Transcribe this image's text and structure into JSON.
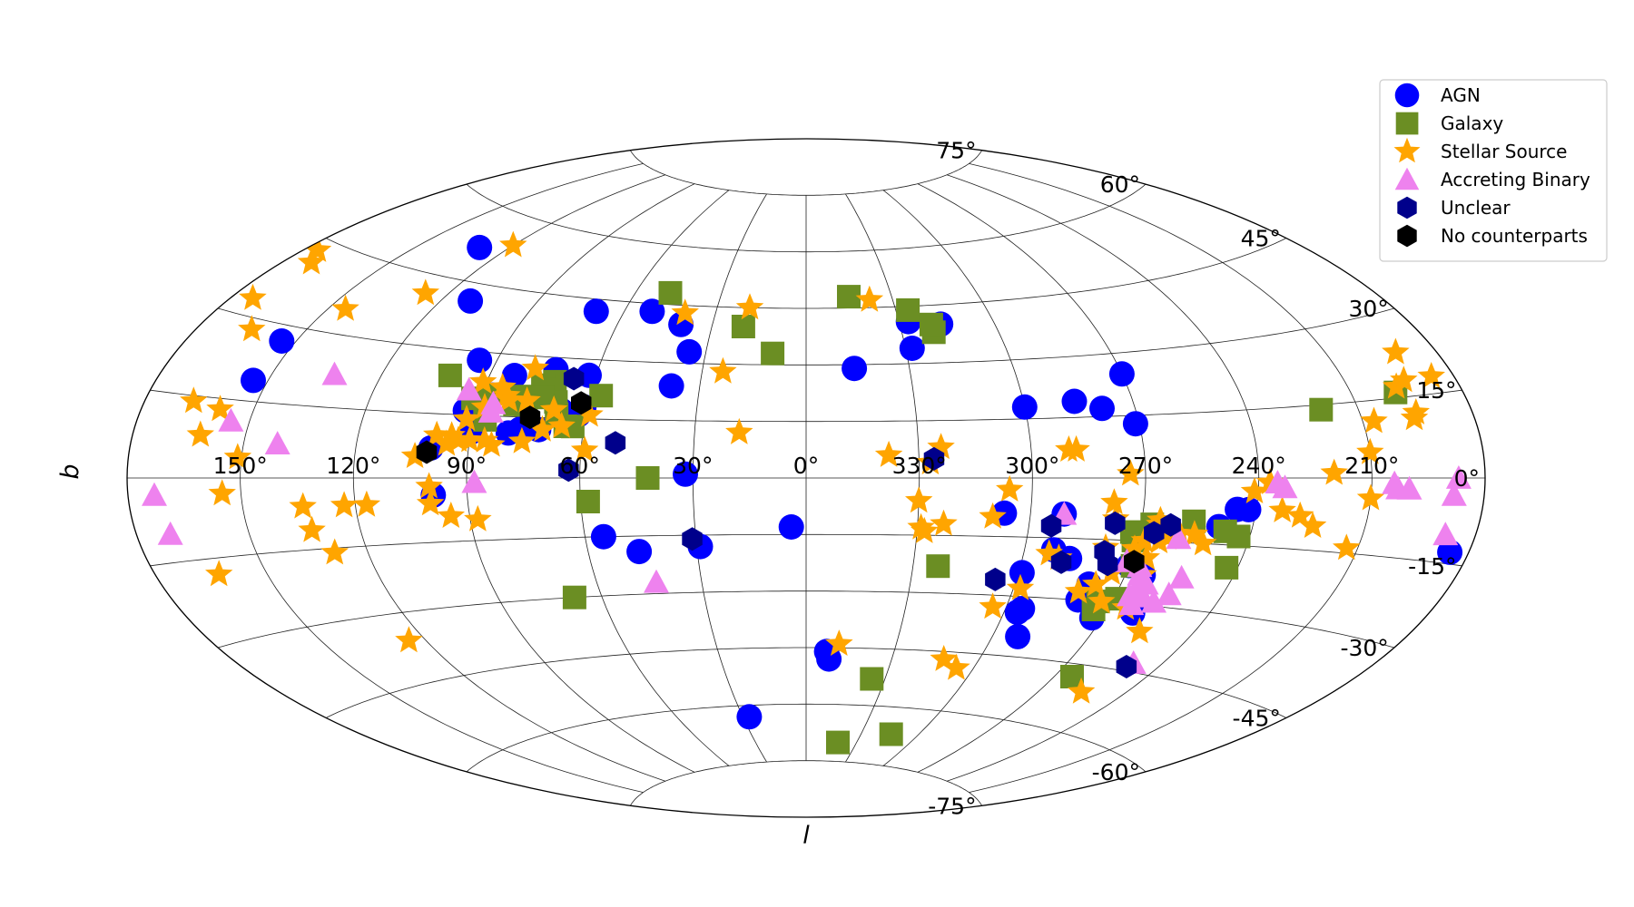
{
  "chart_data": {
    "type": "scatter",
    "projection": "aitoff",
    "grid": true,
    "legend_position": "top-right",
    "xlabel": "l",
    "ylabel": "b",
    "x_ticks": [
      {
        "l": 150,
        "label": "150°"
      },
      {
        "l": 120,
        "label": "120°"
      },
      {
        "l": 90,
        "label": "90°"
      },
      {
        "l": 60,
        "label": "60°"
      },
      {
        "l": 30,
        "label": "30°"
      },
      {
        "l": 0,
        "label": "0°"
      },
      {
        "l": 330,
        "label": "330°"
      },
      {
        "l": 300,
        "label": "300°"
      },
      {
        "l": 270,
        "label": "270°"
      },
      {
        "l": 240,
        "label": "240°"
      },
      {
        "l": 210,
        "label": "210°"
      }
    ],
    "y_ticks": [
      {
        "b": 75,
        "label": "75°"
      },
      {
        "b": 60,
        "label": "60°"
      },
      {
        "b": 45,
        "label": "45°"
      },
      {
        "b": 30,
        "label": "30°"
      },
      {
        "b": 15,
        "label": "15°"
      },
      {
        "b": 0,
        "label": "0°"
      },
      {
        "b": -15,
        "label": "-15°"
      },
      {
        "b": -30,
        "label": "-30°"
      },
      {
        "b": -45,
        "label": "-45°"
      },
      {
        "b": -60,
        "label": "-60°"
      },
      {
        "b": -75,
        "label": "-75°"
      }
    ],
    "series": [
      {
        "name": "AGN",
        "marker": "circle",
        "color": "#0000ff",
        "points": [
          [
            130,
            52
          ],
          [
            111,
            41
          ],
          [
            69,
            42
          ],
          [
            40,
            40
          ],
          [
            51,
            43
          ],
          [
            35,
            33
          ],
          [
            154,
            27
          ],
          [
            154,
            19
          ],
          [
            95,
            28
          ],
          [
            83,
            25
          ],
          [
            87,
            20
          ],
          [
            72,
            27
          ],
          [
            62,
            26
          ],
          [
            61,
            18
          ],
          [
            62,
            16
          ],
          [
            67,
            17
          ],
          [
            93,
            16
          ],
          [
            90,
            11
          ],
          [
            72,
            12
          ],
          [
            80,
            11
          ],
          [
            77,
            12
          ],
          [
            92,
            18
          ],
          [
            38,
            24
          ],
          [
            100,
            7
          ],
          [
            99,
            -4
          ],
          [
            32,
            1
          ],
          [
            55,
            -15
          ],
          [
            46,
            -19
          ],
          [
            29,
            -18
          ],
          [
            4,
            -13
          ],
          [
            352,
            -48
          ],
          [
            353,
            -46
          ],
          [
            27,
            -63
          ],
          [
            346,
            29
          ],
          [
            328,
            34
          ],
          [
            317,
            40
          ],
          [
            327,
            41
          ],
          [
            300,
            18
          ],
          [
            286,
            19
          ],
          [
            279,
            17
          ],
          [
            270,
            25
          ],
          [
            271,
            13
          ],
          [
            245,
            -7
          ],
          [
            249,
            -11
          ],
          [
            242,
            -7
          ],
          [
            185,
            -13
          ],
          [
            307,
            -9
          ],
          [
            291,
            -9
          ],
          [
            292,
            -18
          ],
          [
            299,
            -24
          ],
          [
            287,
            -20
          ],
          [
            292,
            -40
          ],
          [
            295,
            -33
          ],
          [
            296,
            -34
          ],
          [
            280,
            -30
          ],
          [
            279,
            -26
          ],
          [
            277,
            -29
          ],
          [
            273,
            -34
          ],
          [
            262,
            -32
          ],
          [
            265,
            -23
          ],
          [
            270,
            -21
          ]
        ]
      },
      {
        "name": "Galaxy",
        "marker": "square",
        "color": "#6b8e23",
        "points": [
          [
            48,
            48
          ],
          [
            20,
            40
          ],
          [
            345,
            48
          ],
          [
            326,
            44
          ],
          [
            320,
            38
          ],
          [
            320,
            40
          ],
          [
            10,
            33
          ],
          [
            101,
            24
          ],
          [
            92,
            19
          ],
          [
            79,
            20
          ],
          [
            71,
            24
          ],
          [
            74,
            23
          ],
          [
            73,
            22
          ],
          [
            69,
            19
          ],
          [
            88,
            19
          ],
          [
            88,
            20
          ],
          [
            80,
            18
          ],
          [
            73,
            20
          ],
          [
            57,
            21
          ],
          [
            63,
            13
          ],
          [
            77,
            18
          ],
          [
            68,
            16
          ],
          [
            87,
            14
          ],
          [
            65,
            13
          ],
          [
            58,
            -6
          ],
          [
            42,
            0
          ],
          [
            68,
            -30
          ],
          [
            323,
            -23
          ],
          [
            335,
            -53
          ],
          [
            341,
            -70
          ],
          [
            314,
            -67
          ],
          [
            267,
            -11
          ],
          [
            256,
            -10
          ],
          [
            247,
            -12
          ],
          [
            243,
            -13
          ],
          [
            243,
            -20
          ],
          [
            271,
            -15
          ],
          [
            272,
            -13
          ],
          [
            269,
            -21
          ],
          [
            274,
            -32
          ],
          [
            269,
            -29
          ],
          [
            274,
            -30
          ],
          [
            264,
            -48
          ],
          [
            220,
            14
          ],
          [
            198,
            16
          ]
        ]
      },
      {
        "name": "Stellar Source",
        "marker": "star",
        "color": "#ffa500",
        "points": [
          [
            120,
            54
          ],
          [
            127,
            41
          ],
          [
            19,
            45
          ],
          [
            338,
            47
          ],
          [
            40,
            43
          ],
          [
            24,
            28
          ],
          [
            78,
            27
          ],
          [
            91,
            23
          ],
          [
            85,
            22
          ],
          [
            83,
            20
          ],
          [
            82,
            19
          ],
          [
            77,
            19
          ],
          [
            88,
            17
          ],
          [
            69,
            17
          ],
          [
            59,
            16
          ],
          [
            92,
            14
          ],
          [
            99,
            10
          ],
          [
            93,
            9
          ],
          [
            90,
            9
          ],
          [
            95,
            10
          ],
          [
            86,
            9
          ],
          [
            76,
            9
          ],
          [
            96,
            8
          ],
          [
            84,
            8
          ],
          [
            71,
            12
          ],
          [
            66,
            13
          ],
          [
            104,
            5
          ],
          [
            59,
            7
          ],
          [
            18,
            12
          ],
          [
            338,
            6
          ],
          [
            324,
            8
          ],
          [
            327,
            4
          ],
          [
            306,
            -3
          ],
          [
            330,
            -6
          ],
          [
            310,
            -10
          ],
          [
            329,
            -13
          ],
          [
            323,
            -12
          ],
          [
            290,
            7
          ],
          [
            288,
            7
          ],
          [
            274,
            1
          ],
          [
            278,
            -6
          ],
          [
            277,
            -10
          ],
          [
            265,
            -11
          ],
          [
            265,
            -10
          ],
          [
            264,
            -15
          ],
          [
            262,
            -14
          ],
          [
            268,
            -15
          ],
          [
            259,
            -13
          ],
          [
            255,
            -13
          ],
          [
            252,
            -15
          ],
          [
            278,
            -17
          ],
          [
            270,
            -17
          ],
          [
            266,
            -19
          ],
          [
            265,
            -23
          ],
          [
            268,
            -20
          ],
          [
            274,
            -23
          ],
          [
            273,
            -30
          ],
          [
            265,
            -31
          ],
          [
            237,
            -1
          ],
          [
            233,
            -7
          ],
          [
            228,
            -8
          ],
          [
            241,
            -3
          ],
          [
            220,
            1
          ],
          [
            210,
            -4
          ],
          [
            210,
            5
          ],
          [
            224,
            -10
          ],
          [
            213,
            -14
          ],
          [
            256,
            -36
          ],
          [
            293,
            -19
          ],
          [
            290,
            -20
          ],
          [
            277,
            -26
          ],
          [
            312,
            -47
          ],
          [
            306,
            -49
          ],
          [
            281,
            -28
          ],
          [
            255,
            -51
          ],
          [
            191,
            23
          ],
          [
            197,
            17
          ],
          [
            194,
            18
          ],
          [
            196,
            11
          ],
          [
            195,
            12
          ],
          [
            207,
            11
          ],
          [
            186,
            18
          ],
          [
            174,
            33
          ],
          [
            172,
            41
          ],
          [
            176,
            43
          ],
          [
            165,
            28
          ],
          [
            145,
            35
          ],
          [
            159,
            13
          ],
          [
            162,
            8
          ],
          [
            167,
            14
          ],
          [
            100,
            -6
          ],
          [
            100,
            -2
          ],
          [
            95,
            -9
          ],
          [
            88,
            -10
          ],
          [
            117,
            -6
          ],
          [
            134,
            -6
          ],
          [
            123,
            -6
          ],
          [
            151,
            4
          ],
          [
            163,
            -18
          ],
          [
            133,
            -11
          ],
          [
            129,
            -16
          ],
          [
            155,
            -3
          ],
          [
            125,
            -36
          ],
          [
            328,
            -14
          ],
          [
            304,
            -33
          ],
          [
            298,
            -28
          ],
          [
            349,
            -44
          ]
        ]
      },
      {
        "name": "Accreting Binary",
        "marker": "triangle",
        "color": "#ee82ee",
        "points": [
          [
            155,
            11
          ],
          [
            133,
            22
          ],
          [
            94,
            21
          ],
          [
            86,
            18
          ],
          [
            86,
            16
          ],
          [
            88,
            -1
          ],
          [
            141,
            7
          ],
          [
            173,
            -3
          ],
          [
            171,
            -10
          ],
          [
            43,
            -27
          ],
          [
            291,
            -9
          ],
          [
            259,
            -14
          ],
          [
            271,
            -20
          ],
          [
            267,
            -21
          ],
          [
            266,
            -23
          ],
          [
            263,
            -25
          ],
          [
            265,
            -26
          ],
          [
            266,
            -28
          ],
          [
            264,
            -30
          ],
          [
            262,
            -28
          ],
          [
            258,
            -29
          ],
          [
            255,
            -27
          ],
          [
            249,
            -43
          ],
          [
            235,
            -1
          ],
          [
            233,
            -2
          ],
          [
            204,
            -1
          ],
          [
            203,
            -2
          ],
          [
            200,
            -2
          ],
          [
            188,
            -3
          ],
          [
            187,
            0
          ],
          [
            188,
            -10
          ],
          [
            254,
            -23
          ]
        ]
      },
      {
        "name": "Unclear",
        "marker": "hexagon",
        "color": "#00008b",
        "points": [
          [
            66,
            25
          ],
          [
            51,
            9
          ],
          [
            63,
            2
          ],
          [
            31,
            -16
          ],
          [
            326,
            5
          ],
          [
            306,
            -26
          ],
          [
            294,
            -12
          ],
          [
            289,
            -21
          ],
          [
            278,
            -18
          ],
          [
            276,
            -21
          ],
          [
            277,
            -11
          ],
          [
            266,
            -13
          ],
          [
            262,
            -11
          ],
          [
            250,
            -44
          ]
        ]
      },
      {
        "name": "No counterparts",
        "marker": "hexagon",
        "color": "#000000",
        "points": [
          [
            62,
            19
          ],
          [
            75,
            15
          ],
          [
            101,
            6
          ],
          [
            269,
            -20
          ]
        ]
      }
    ]
  }
}
